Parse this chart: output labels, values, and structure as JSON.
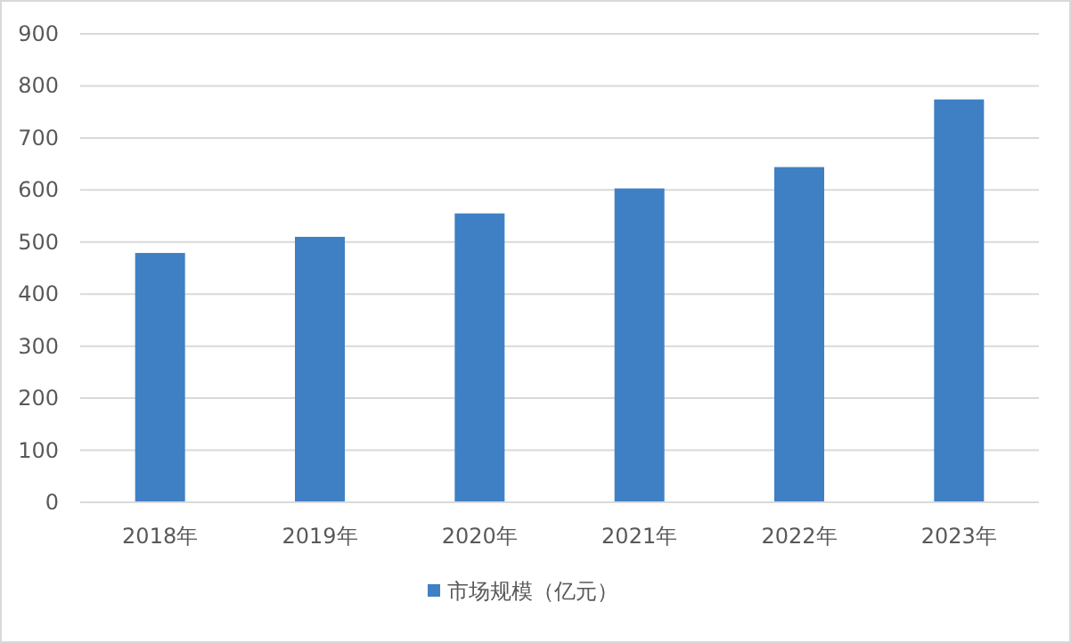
{
  "chart_data": {
    "type": "bar",
    "categories": [
      "2018年",
      "2019年",
      "2020年",
      "2021年",
      "2022年",
      "2023年"
    ],
    "series": [
      {
        "name": "市场规模（亿元）",
        "color": "#3f80c4",
        "values": [
          479,
          510,
          555,
          603,
          644,
          774
        ]
      }
    ],
    "ylim": [
      0,
      900
    ],
    "yticks": [
      0,
      100,
      200,
      300,
      400,
      500,
      600,
      700,
      800,
      900
    ],
    "grid": "y",
    "legend": "bottom"
  }
}
